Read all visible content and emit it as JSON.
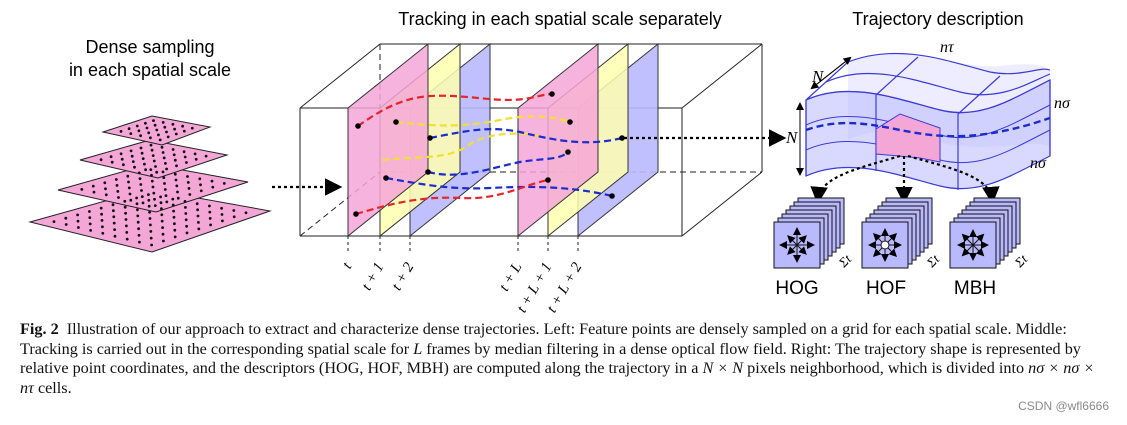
{
  "labels": {
    "dense_line1": "Dense sampling",
    "dense_line2": "in each spatial scale",
    "tracking_title": "Tracking in each spatial scale separately",
    "trajectory_title": "Trajectory description",
    "frame_t": "t",
    "frame_t1": "t + 1",
    "frame_t2": "t + 2",
    "frame_tL": "t + L",
    "frame_tL1": "t + L + 1",
    "frame_tL2": "t + L + 2",
    "dim_N_top": "N",
    "dim_N_side": "N",
    "dim_ntau": "nτ",
    "dim_nsigma_1": "nσ",
    "dim_nsigma_2": "nσ",
    "sum_1": "Σt",
    "sum_2": "Σt",
    "sum_3": "Σt",
    "hog": "HOG",
    "hof": "HOF",
    "mbh": "MBH"
  },
  "caption": {
    "fig_label": "Fig. 2",
    "part1": "Illustration of our approach to extract and characterize dense trajectories. Left: Feature points are densely sampled on a grid for each spatial scale. Middle: Tracking is carried out in the corresponding spatial scale for",
    "var_L": "L",
    "part2": "frames by median filtering in a dense optical flow field. Right: The trajectory shape is represented by relative point coordinates, and the descriptors (HOG, HOF, MBH) are computed along the trajectory in a",
    "var_NxN": "N × N",
    "part3": "pixels neighborhood, which is divided into",
    "var_cells": "nσ × nσ × nτ",
    "part4": "cells."
  },
  "watermark": "CSDN @wfl6666",
  "colors": {
    "pink": "#f4a6d7",
    "yellow": "#ffffb0",
    "lavender": "#b9b9ff",
    "red_track": "#e8232a",
    "blue_track": "#1a2ccc",
    "yellow_track": "#f0e030",
    "grid_blue": "#3b3bd8"
  }
}
